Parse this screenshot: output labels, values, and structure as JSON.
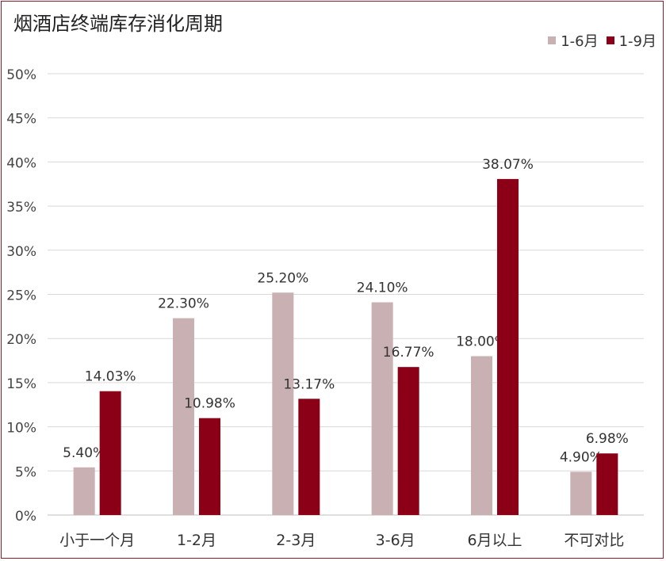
{
  "chart_data": {
    "type": "bar",
    "title": "烟酒店终端库存消化周期",
    "categories": [
      "小于一个月",
      "1-2月",
      "2-3月",
      "3-6月",
      "6月以上",
      "不可对比"
    ],
    "series": [
      {
        "name": "1-6月",
        "color": "#c9b0b3",
        "values": [
          5.4,
          22.3,
          25.2,
          24.1,
          18.0,
          4.9
        ]
      },
      {
        "name": "1-9月",
        "color": "#8b0016",
        "values": [
          14.03,
          10.98,
          13.17,
          16.77,
          38.07,
          6.98
        ]
      }
    ],
    "data_labels": [
      [
        "5.40%",
        "22.30%",
        "25.20%",
        "24.10%",
        "18.00%",
        "4.90%"
      ],
      [
        "14.03%",
        "10.98%",
        "13.17%",
        "16.77%",
        "38.07%",
        "6.98%"
      ]
    ],
    "y_ticks": [
      "0%",
      "5%",
      "10%",
      "15%",
      "20%",
      "25%",
      "30%",
      "35%",
      "40%",
      "45%",
      "50%"
    ],
    "ylim": [
      0,
      50
    ],
    "xlabel": "",
    "ylabel": "",
    "grid": true,
    "legend_position": "top-right"
  }
}
